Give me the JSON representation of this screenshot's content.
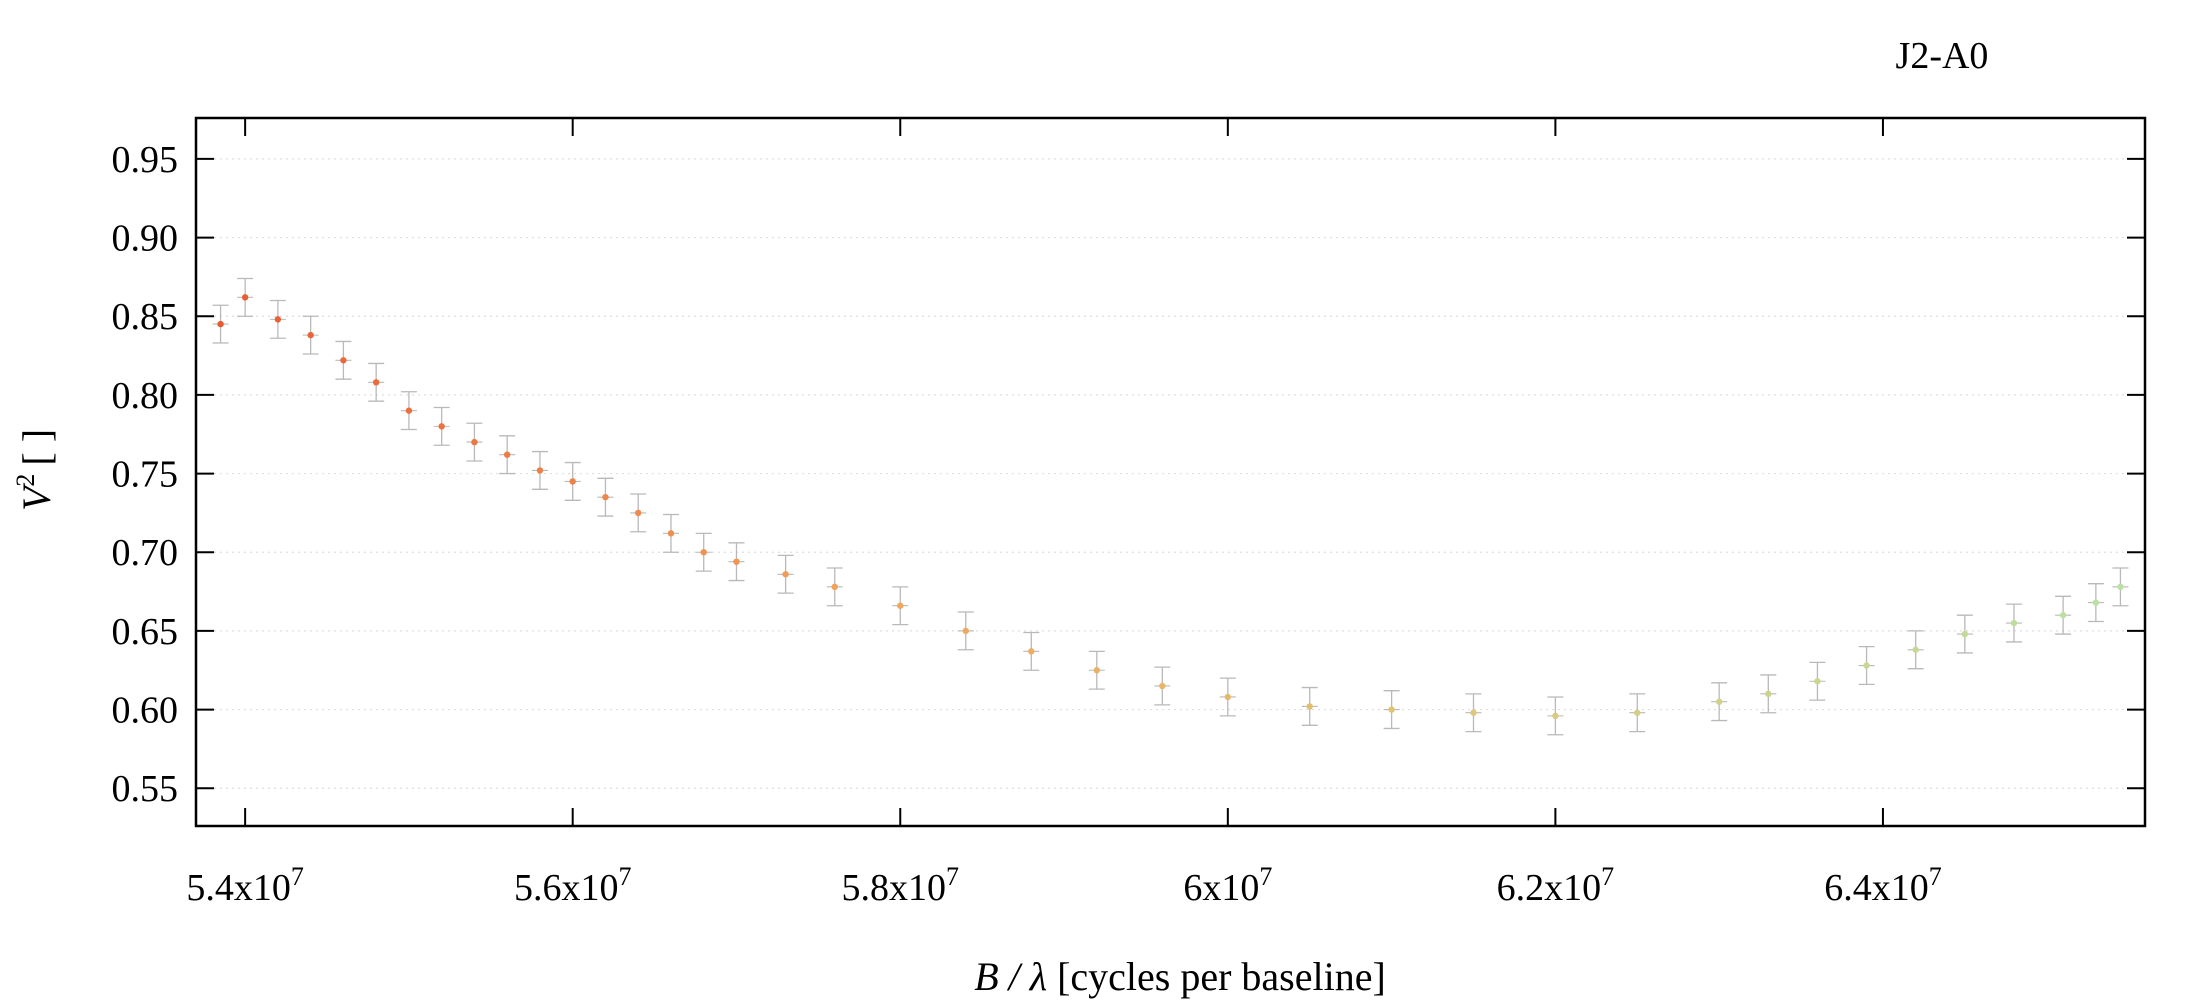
{
  "chart_data": {
    "type": "scatter",
    "title": "J2-A0",
    "xlabel": {
      "var": "B / λ",
      "units": "[cycles per baseline]"
    },
    "ylabel": {
      "var": "V",
      "sup": "2",
      "units": "[ ]"
    },
    "xlim": [
      53700000,
      65600000
    ],
    "ylim": [
      0.526,
      0.976
    ],
    "x_ticks": [
      {
        "value": 54000000,
        "mantissa": "5.4x10",
        "exp": "7"
      },
      {
        "value": 56000000,
        "mantissa": "5.6x10",
        "exp": "7"
      },
      {
        "value": 58000000,
        "mantissa": "5.8x10",
        "exp": "7"
      },
      {
        "value": 60000000,
        "mantissa": "6x10",
        "exp": "7"
      },
      {
        "value": 62000000,
        "mantissa": "6.2x10",
        "exp": "7"
      },
      {
        "value": 64000000,
        "mantissa": "6.4x10",
        "exp": "7"
      }
    ],
    "y_ticks": [
      {
        "value": 0.55,
        "label": "0.55"
      },
      {
        "value": 0.6,
        "label": "0.60"
      },
      {
        "value": 0.65,
        "label": "0.65"
      },
      {
        "value": 0.7,
        "label": "0.70"
      },
      {
        "value": 0.75,
        "label": "0.75"
      },
      {
        "value": 0.8,
        "label": "0.80"
      },
      {
        "value": 0.85,
        "label": "0.85"
      },
      {
        "value": 0.9,
        "label": "0.90"
      },
      {
        "value": 0.95,
        "label": "0.95"
      }
    ],
    "grid": "horizontal dotted",
    "legend": "none",
    "colors": {
      "errorbar": "#b9b9b9",
      "frame": "#000000",
      "grid": "#dddddd",
      "point_gradient": [
        "#e8572f",
        "#f3a25a",
        "#dcc978",
        "#b7e3a3"
      ]
    },
    "series": [
      {
        "x": [
          53850000,
          54000000,
          54200000,
          54400000,
          54600000,
          54800000,
          55000000,
          55200000,
          55400000,
          55600000,
          55800000,
          56000000,
          56200000,
          56400000,
          56600000,
          56800000,
          57000000,
          57300000,
          57600000,
          58000000,
          58400000,
          58800000,
          59200000,
          59600000,
          60000000,
          60500000,
          61000000,
          61500000,
          62000000,
          62500000,
          63000000,
          63300000,
          63600000,
          63900000,
          64200000,
          64500000,
          64800000,
          65100000,
          65300000,
          65450000
        ],
        "y": [
          0.845,
          0.862,
          0.848,
          0.838,
          0.822,
          0.808,
          0.79,
          0.78,
          0.77,
          0.762,
          0.752,
          0.745,
          0.735,
          0.725,
          0.712,
          0.7,
          0.694,
          0.686,
          0.678,
          0.666,
          0.65,
          0.637,
          0.625,
          0.615,
          0.608,
          0.602,
          0.6,
          0.598,
          0.596,
          0.598,
          0.605,
          0.61,
          0.618,
          0.628,
          0.638,
          0.648,
          0.655,
          0.66,
          0.668,
          0.678
        ],
        "y_err": 0.012
      }
    ]
  }
}
